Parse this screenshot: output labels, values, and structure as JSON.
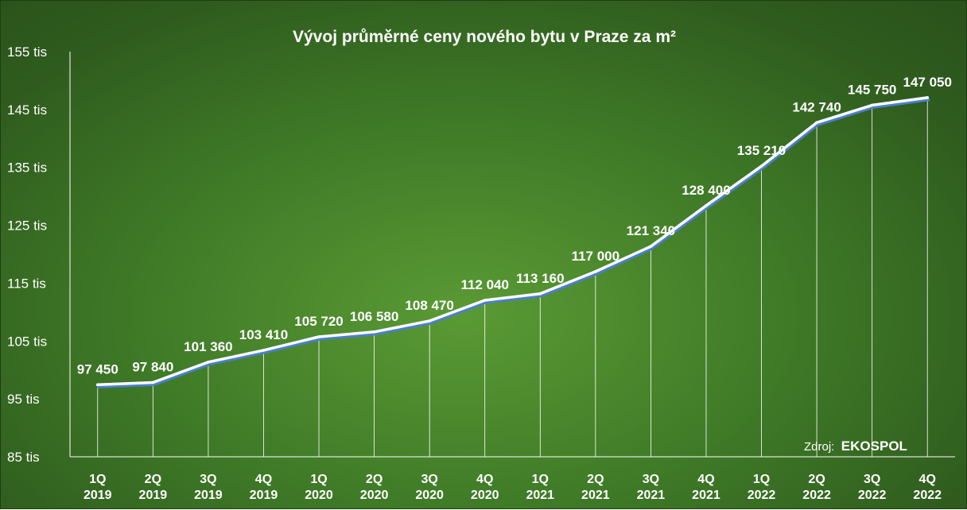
{
  "chart_data": {
    "type": "line",
    "title": "Vývoj průměrné ceny nového bytu v Praze za m²",
    "categories": [
      [
        "1Q",
        "2019"
      ],
      [
        "2Q",
        "2019"
      ],
      [
        "3Q",
        "2019"
      ],
      [
        "4Q",
        "2019"
      ],
      [
        "1Q",
        "2020"
      ],
      [
        "2Q",
        "2020"
      ],
      [
        "3Q",
        "2020"
      ],
      [
        "4Q",
        "2020"
      ],
      [
        "1Q",
        "2021"
      ],
      [
        "2Q",
        "2021"
      ],
      [
        "3Q",
        "2021"
      ],
      [
        "4Q",
        "2021"
      ],
      [
        "1Q",
        "2022"
      ],
      [
        "2Q",
        "2022"
      ],
      [
        "3Q",
        "2022"
      ],
      [
        "4Q",
        "2022"
      ]
    ],
    "values": [
      97450,
      97840,
      101360,
      103410,
      105720,
      106580,
      108470,
      112040,
      113160,
      117000,
      121340,
      128400,
      135210,
      142740,
      145750,
      147050
    ],
    "data_labels": [
      "97 450",
      "97 840",
      "101 360",
      "103 410",
      "105 720",
      "106 580",
      "108 470",
      "112 040",
      "113 160",
      "117 000",
      "121 340",
      "128 400",
      "135 210",
      "142 740",
      "145 750",
      "147 050"
    ],
    "ylim": [
      85000,
      155000
    ],
    "yticks": [
      85000,
      95000,
      105000,
      115000,
      125000,
      135000,
      145000,
      155000
    ],
    "ytick_labels": [
      "85 tis",
      "95 tis",
      "105 tis",
      "115 tis",
      "125 tis",
      "135 tis",
      "145 tis",
      "155 tis"
    ],
    "line_color": "#ffffff",
    "shadow_color": "#4a7fd0",
    "grid": false,
    "drop_lines": true,
    "source_prefix": "Zdroj:",
    "source_name": "EKOSPOL"
  }
}
